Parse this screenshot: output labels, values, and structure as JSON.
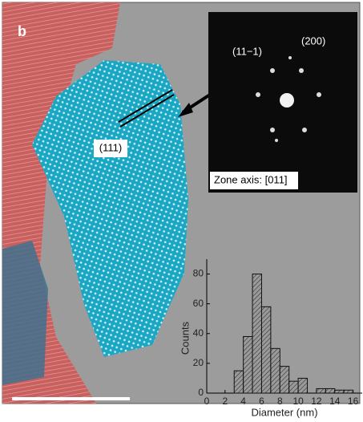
{
  "figure": {
    "panel_label": "b",
    "fft_labels": [
      "(11−1)",
      "(200)"
    ],
    "lattice_label": "(111)",
    "zone_axis": "Zone axis: [011]"
  },
  "chart_data": {
    "type": "histogram",
    "xlabel": "Diameter (nm)",
    "ylabel": "Counts",
    "bins": [
      3,
      4,
      5,
      6,
      7,
      8,
      9,
      10,
      11,
      12,
      13,
      14,
      15,
      16
    ],
    "counts": [
      15,
      38,
      80,
      58,
      30,
      18,
      8,
      10,
      0,
      3,
      3,
      2,
      2
    ],
    "xlim": [
      0,
      17
    ],
    "ylim": [
      0,
      90
    ],
    "xticks": [
      0,
      2,
      4,
      6,
      8,
      10,
      12,
      14,
      16
    ],
    "yticks": [
      0,
      20,
      40,
      60,
      80
    ],
    "color": "#8a8a8a"
  }
}
